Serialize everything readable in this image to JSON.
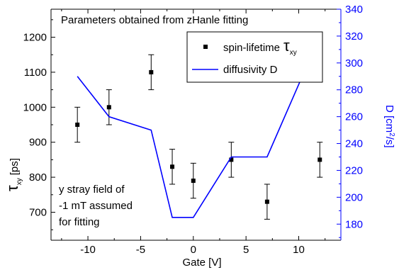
{
  "chart_data": {
    "type": "scatter+line",
    "annotation_title": "Parameters obtained from zHanle fitting",
    "annotation_note": [
      "y stray field of",
      "-1 mT assumed",
      "for fitting"
    ],
    "xlabel": "Gate [V]",
    "ylabel_left": {
      "symbol": "τ",
      "sub": "xy",
      "unit": "[ps]"
    },
    "ylabel_right": {
      "prefix": "D [cm",
      "sup": "2",
      "suffix": "/s]"
    },
    "xlim": [
      -13.5,
      14
    ],
    "ylim_left": [
      620,
      1280
    ],
    "ylim_right": [
      168,
      340
    ],
    "x_ticks": [
      -10,
      -5,
      0,
      5,
      10
    ],
    "y_left_ticks": [
      700,
      800,
      900,
      1000,
      1100,
      1200
    ],
    "y_right_ticks": [
      180,
      200,
      220,
      240,
      260,
      280,
      300,
      320,
      340
    ],
    "legend": {
      "placement": "top-right",
      "spin": {
        "text": "spin-lifetime",
        "symbol": "τ",
        "sub": "xy"
      },
      "diffusivity": {
        "text": "diffusivity D"
      }
    },
    "series": [
      {
        "key": "spin",
        "axis": "left",
        "kind": "scatter_errorbar",
        "color": "#000000",
        "x": [
          -11,
          -8,
          -4,
          -2,
          0,
          3.6,
          7,
          12
        ],
        "y": [
          950,
          1000,
          1100,
          830,
          790,
          850,
          730,
          850
        ],
        "err": [
          50,
          50,
          50,
          50,
          50,
          50,
          50,
          50
        ]
      },
      {
        "key": "diffusivity",
        "axis": "right",
        "kind": "line",
        "color": "#0000ff",
        "x": [
          -11,
          -8,
          -4,
          -2,
          0,
          3.6,
          7,
          12
        ],
        "y": [
          290,
          260,
          250,
          185,
          185,
          230,
          230,
          320
        ]
      }
    ],
    "colors": {
      "axis": "#000000",
      "right_axis": "#0000ff",
      "line": "#0000ff"
    }
  }
}
